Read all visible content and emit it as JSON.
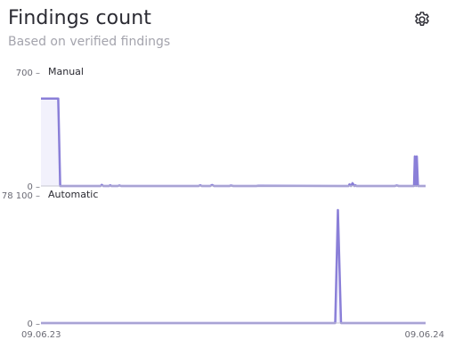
{
  "header": {
    "title": "Findings count",
    "subtitle": "Based on verified findings"
  },
  "toolbar": {
    "settings_icon": "gear-icon"
  },
  "colors": {
    "line": "#8a7fd8",
    "fill": "#efedfb",
    "axis": "#c7c7d0"
  },
  "x_axis": {
    "start_label": "09.06.23",
    "end_label": "09.06.24"
  },
  "chart_data": [
    {
      "type": "line",
      "series_label": "Manual",
      "ylim": [
        0,
        700
      ],
      "y_ticks": [
        {
          "value": 700,
          "label": "700 –"
        },
        {
          "value": 0,
          "label": "0 –"
        }
      ],
      "x": [
        0,
        0.045,
        0.05,
        0.155,
        0.158,
        0.162,
        0.177,
        0.18,
        0.183,
        0.2,
        0.204,
        0.208,
        0.22,
        0.41,
        0.414,
        0.418,
        0.44,
        0.445,
        0.45,
        0.49,
        0.494,
        0.5,
        0.56,
        0.565,
        0.8,
        0.802,
        0.806,
        0.81,
        0.815,
        0.818,
        0.82,
        0.92,
        0.925,
        0.93,
        0.97,
        0.972,
        0.975,
        0.977,
        0.98,
        0.982,
        0.985,
        1
      ],
      "values": [
        620,
        620,
        0,
        0,
        8,
        0,
        0,
        5,
        0,
        0,
        4,
        0,
        0,
        0,
        5,
        0,
        0,
        7,
        0,
        0,
        3,
        0,
        0,
        2,
        0,
        12,
        0,
        20,
        0,
        5,
        0,
        0,
        4,
        0,
        0,
        210,
        0,
        210,
        0,
        0,
        0,
        0
      ]
    },
    {
      "type": "line",
      "series_label": "Automatic",
      "ylim": [
        0,
        78100
      ],
      "y_ticks": [
        {
          "value": 78100,
          "label": "78 100 –"
        },
        {
          "value": 0,
          "label": "0 –"
        }
      ],
      "x": [
        0,
        0.765,
        0.772,
        0.78,
        1
      ],
      "values": [
        0,
        0,
        78100,
        0,
        0
      ]
    }
  ]
}
